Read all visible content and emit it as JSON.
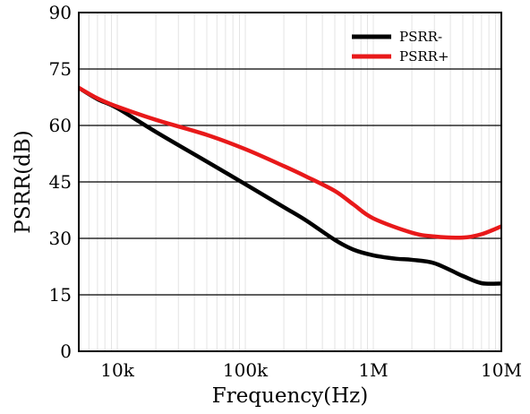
{
  "chart_data": {
    "type": "line",
    "title": "",
    "xlabel": "Frequency(Hz)",
    "ylabel": "PSRR(dB)",
    "x_scale": "log",
    "xlim": [
      5000,
      10000000
    ],
    "ylim": [
      0,
      90
    ],
    "grid": true,
    "legend_position": "top-right",
    "x_ticks": [
      {
        "value": 10000,
        "label": "10k"
      },
      {
        "value": 100000,
        "label": "100k"
      },
      {
        "value": 1000000,
        "label": "1M"
      },
      {
        "value": 10000000,
        "label": "10M"
      }
    ],
    "y_ticks": [
      {
        "value": 0,
        "label": "0"
      },
      {
        "value": 15,
        "label": "15"
      },
      {
        "value": 30,
        "label": "30"
      },
      {
        "value": 45,
        "label": "45"
      },
      {
        "value": 60,
        "label": "60"
      },
      {
        "value": 75,
        "label": "75"
      },
      {
        "value": 90,
        "label": "90"
      }
    ],
    "series": [
      {
        "name": "PSRR-",
        "color": "#000000",
        "x": [
          5000,
          7000,
          10000,
          20000,
          50000,
          100000,
          200000,
          300000,
          500000,
          700000,
          1000000,
          1500000,
          2000000,
          3000000,
          5000000,
          7000000,
          10000000
        ],
        "y": [
          70,
          67,
          64.6,
          58.3,
          50.4,
          44.4,
          38.3,
          34.7,
          29.6,
          27,
          25.5,
          24.6,
          24.3,
          23.4,
          20,
          18.1,
          18
        ]
      },
      {
        "name": "PSRR+",
        "color": "#e8191a",
        "x": [
          5000,
          7000,
          10000,
          20000,
          50000,
          100000,
          200000,
          300000,
          500000,
          700000,
          1000000,
          2000000,
          3000000,
          5000000,
          7000000,
          10000000
        ],
        "y": [
          70,
          67.2,
          65,
          61.5,
          57.5,
          53.7,
          49.2,
          46.4,
          42.6,
          39,
          35.3,
          31.5,
          30.5,
          30.2,
          31.1,
          33.2
        ]
      }
    ]
  }
}
